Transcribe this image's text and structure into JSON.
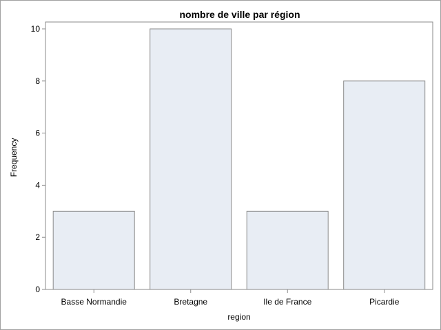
{
  "chart_data": {
    "type": "bar",
    "title": "nombre de ville par région",
    "xlabel": "region",
    "ylabel": "Frequency",
    "categories": [
      "Basse Normandie",
      "Bretagne",
      "Ile de France",
      "Picardie"
    ],
    "values": [
      3,
      10,
      3,
      8
    ],
    "ylim": [
      0,
      10
    ],
    "yticks": [
      0,
      2,
      4,
      6,
      8,
      10
    ],
    "grid": false,
    "colors": {
      "bar_fill": "#e8edf4",
      "bar_stroke": "#8a8a8a",
      "axis": "#8a8a8a"
    }
  }
}
